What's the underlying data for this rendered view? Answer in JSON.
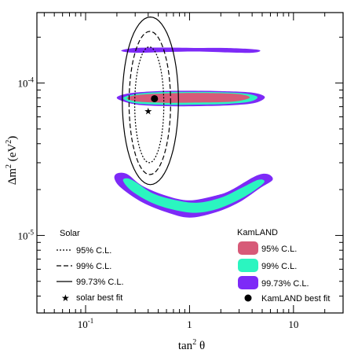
{
  "chart_data": {
    "type": "contour",
    "xlabel_base": "tan",
    "xlabel_sup": "2",
    "xlabel_tail": " θ",
    "ylabel_base": "Δm",
    "ylabel_sup": "2",
    "ylabel_unit": " (eV",
    "ylabel_unit_sup": "2",
    "ylabel_close": ")",
    "x_scale": "log",
    "y_scale": "log",
    "xlim": [
      0.034,
      30
    ],
    "ylim": [
      3.1e-06,
      0.00029
    ],
    "x_ticks": [
      {
        "value": 0.1,
        "base": "10",
        "exp": "-1"
      },
      {
        "value": 1,
        "label": "1"
      },
      {
        "value": 10,
        "label": "10"
      }
    ],
    "y_ticks": [
      {
        "value": 1e-05,
        "base": "10",
        "exp": "-5"
      },
      {
        "value": 0.0001,
        "base": "10",
        "exp": "-4"
      }
    ],
    "colors": {
      "kam_95": "#d75a78",
      "kam_99": "#2bf5c0",
      "kam_9973": "#7d2af7"
    },
    "kamland": {
      "title": "KamLAND",
      "best_fit": {
        "x": 0.46,
        "y": 7.9e-05,
        "label": "KamLAND best fit"
      },
      "levels": [
        {
          "label": "99.73% C.L.",
          "color": "#7d2af7",
          "islands": [
            {
              "points": [
                [
                  0.22,
                  0.000163
                ],
                [
                  0.3,
                  0.00017
                ],
                [
                  0.6,
                  0.000171
                ],
                [
                  1.2,
                  0.00017
                ],
                [
                  2.2,
                  0.00017
                ],
                [
                  4.0,
                  0.000167
                ],
                [
                  4.8,
                  0.000163
                ],
                [
                  4.0,
                  0.000158
                ],
                [
                  2.2,
                  0.000159
                ],
                [
                  1.2,
                  0.000161
                ],
                [
                  0.6,
                  0.00016
                ],
                [
                  0.3,
                  0.000158
                ]
              ]
            },
            {
              "points": [
                [
                  0.2,
                  7.95e-05
                ],
                [
                  0.26,
                  8.55e-05
                ],
                [
                  0.5,
                  8.85e-05
                ],
                [
                  1.0,
                  8.9e-05
                ],
                [
                  2.0,
                  8.85e-05
                ],
                [
                  4.0,
                  8.65e-05
                ],
                [
                  5.3,
                  8.1e-05
                ],
                [
                  4.3,
                  7.42e-05
                ],
                [
                  2.5,
                  7.15e-05
                ],
                [
                  1.2,
                  7.05e-05
                ],
                [
                  0.6,
                  7.05e-05
                ],
                [
                  0.3,
                  7.25e-05
                ]
              ]
            },
            {
              "points": [
                [
                  0.19,
                  2.35e-05
                ],
                [
                  0.22,
                  2.05e-05
                ],
                [
                  0.35,
                  1.65e-05
                ],
                [
                  0.6,
                  1.42e-05
                ],
                [
                  1.0,
                  1.31e-05
                ],
                [
                  1.8,
                  1.42e-05
                ],
                [
                  3.0,
                  1.65e-05
                ],
                [
                  4.8,
                  2.05e-05
                ],
                [
                  6.3,
                  2.32e-05
                ],
                [
                  5.6,
                  2.53e-05
                ],
                [
                  4.3,
                  2.45e-05
                ],
                [
                  2.5,
                  1.98e-05
                ],
                [
                  1.8,
                  1.83e-05
                ],
                [
                  1.0,
                  1.7e-05
                ],
                [
                  0.6,
                  1.82e-05
                ],
                [
                  0.35,
                  2.12e-05
                ],
                [
                  0.25,
                  2.53e-05
                ],
                [
                  0.2,
                  2.55e-05
                ]
              ]
            }
          ]
        },
        {
          "label": "99% C.L.",
          "color": "#2bf5c0",
          "islands": [
            {
              "points": [
                [
                  0.23,
                  7.95e-05
                ],
                [
                  0.3,
                  8.45e-05
                ],
                [
                  0.5,
                  8.7e-05
                ],
                [
                  1.0,
                  8.75e-05
                ],
                [
                  2.0,
                  8.7e-05
                ],
                [
                  3.5,
                  8.52e-05
                ],
                [
                  4.5,
                  8.1e-05
                ],
                [
                  3.8,
                  7.55e-05
                ],
                [
                  2.3,
                  7.3e-05
                ],
                [
                  1.2,
                  7.22e-05
                ],
                [
                  0.6,
                  7.2e-05
                ],
                [
                  0.3,
                  7.38e-05
                ]
              ]
            },
            {
              "points": [
                [
                  0.23,
                  2.28e-05
                ],
                [
                  0.28,
                  1.95e-05
                ],
                [
                  0.45,
                  1.62e-05
                ],
                [
                  0.75,
                  1.46e-05
                ],
                [
                  1.2,
                  1.41e-05
                ],
                [
                  2.0,
                  1.52e-05
                ],
                [
                  3.5,
                  1.82e-05
                ],
                [
                  5.2,
                  2.22e-05
                ],
                [
                  4.6,
                  2.32e-05
                ],
                [
                  3.2,
                  2.06e-05
                ],
                [
                  2.0,
                  1.77e-05
                ],
                [
                  1.2,
                  1.64e-05
                ],
                [
                  0.75,
                  1.7e-05
                ],
                [
                  0.45,
                  1.88e-05
                ],
                [
                  0.3,
                  2.25e-05
                ],
                [
                  0.25,
                  2.37e-05
                ]
              ]
            }
          ]
        },
        {
          "label": "95% C.L.",
          "color": "#d75a78",
          "islands": [
            {
              "points": [
                [
                  0.25,
                  7.95e-05
                ],
                [
                  0.32,
                  8.35e-05
                ],
                [
                  0.6,
                  8.55e-05
                ],
                [
                  1.2,
                  8.6e-05
                ],
                [
                  2.2,
                  8.55e-05
                ],
                [
                  3.2,
                  8.4e-05
                ],
                [
                  3.8,
                  8.05e-05
                ],
                [
                  3.2,
                  7.7e-05
                ],
                [
                  2.2,
                  7.5e-05
                ],
                [
                  1.2,
                  7.45e-05
                ],
                [
                  0.6,
                  7.42e-05
                ],
                [
                  0.32,
                  7.55e-05
                ]
              ]
            }
          ]
        }
      ]
    },
    "solar": {
      "title": "Solar",
      "best_fit": {
        "x": 0.4,
        "y": 6.55e-05,
        "label": "solar best fit"
      },
      "contours": [
        {
          "label": "95% C.L.",
          "dash": "2,2",
          "cx": 0.41,
          "cy": 7.2e-05,
          "rx": 0.14,
          "ry": 0.38
        },
        {
          "label": "99% C.L.",
          "dash": "6,3",
          "cx": 0.415,
          "cy": 7.4e-05,
          "rx": 0.2,
          "ry": 0.47
        },
        {
          "label": "99.73% C.L.",
          "dash": "none",
          "cx": 0.42,
          "cy": 7.65e-05,
          "rx": 0.27,
          "ry": 0.55
        }
      ]
    }
  }
}
